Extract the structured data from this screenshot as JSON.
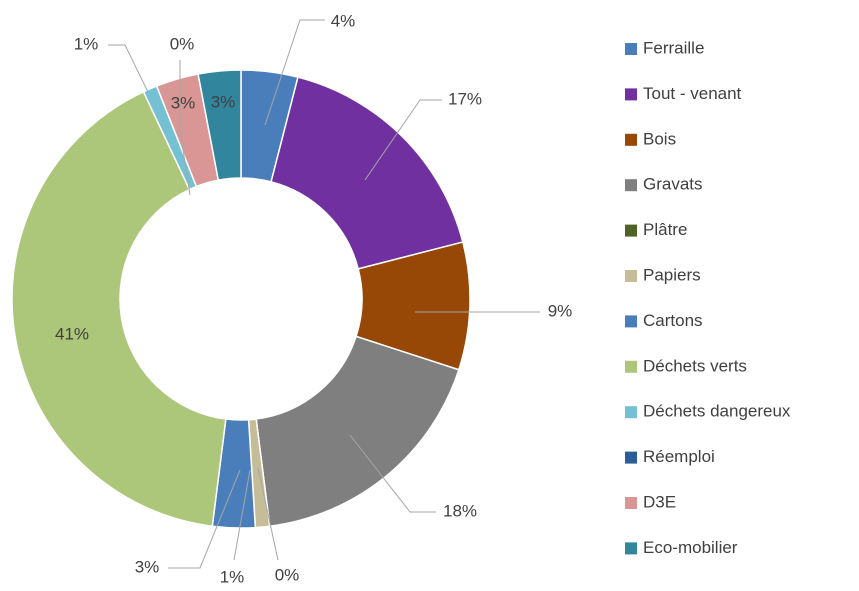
{
  "chart_data": {
    "type": "donut",
    "categories": [
      "Ferraille",
      "Tout - venant",
      "Bois",
      "Gravats",
      "Plâtre",
      "Papiers",
      "Cartons",
      "Déchets verts",
      "Déchets dangereux",
      "Réemploi",
      "D3E",
      "Eco-mobilier"
    ],
    "values": [
      4,
      17,
      9,
      18,
      0,
      1,
      3,
      41,
      1,
      0,
      3,
      3
    ],
    "value_labels": [
      "4%",
      "17%",
      "9%",
      "18%",
      "0%",
      "1%",
      "3%",
      "41%",
      "1%",
      "0%",
      "3%",
      "3%"
    ],
    "colors": [
      "#4a7ebb",
      "#7030a0",
      "#974706",
      "#7f7f7f",
      "#4f6228",
      "#c4bd97",
      "#4a7ebb",
      "#acc779",
      "#74c1d4",
      "#2c5d98",
      "#d99694",
      "#31859c"
    ],
    "legend": "right"
  }
}
